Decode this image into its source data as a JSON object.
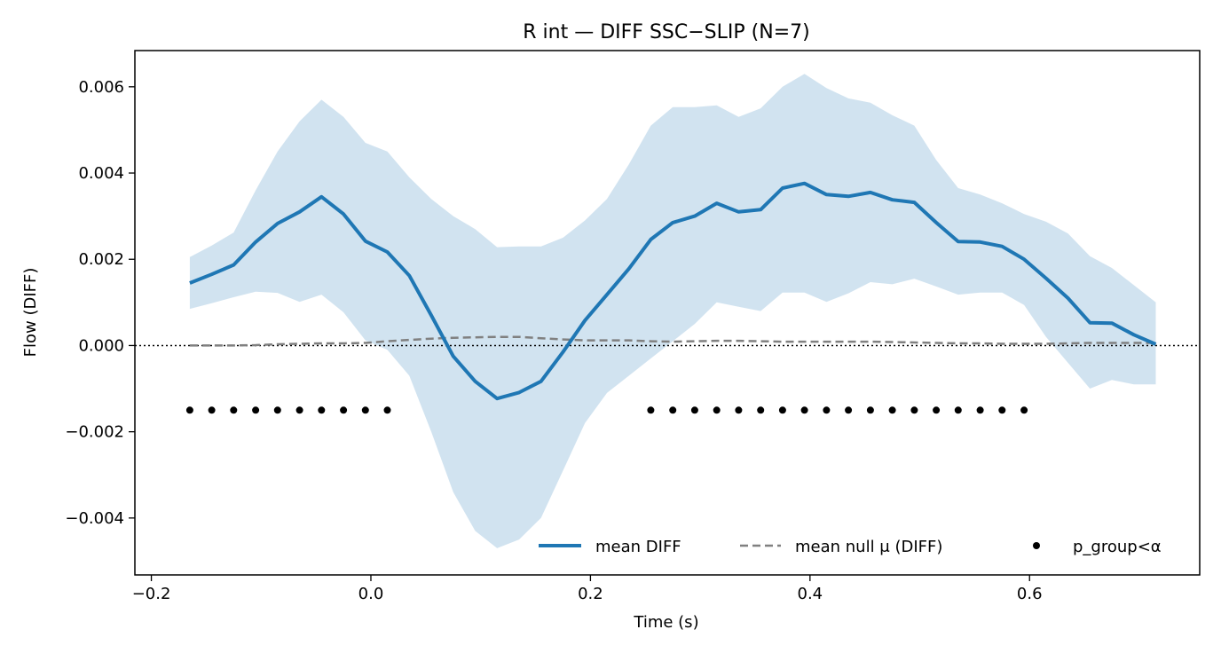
{
  "chart_data": {
    "type": "line",
    "title": "R int — DIFF SSC−SLIP (N=7)",
    "xlabel": "Time (s)",
    "ylabel": "Flow (DIFF)",
    "xlim": [
      -0.215,
      0.755
    ],
    "ylim": [
      -0.00532,
      0.00684
    ],
    "xticks": [
      -0.2,
      0.0,
      0.2,
      0.4,
      0.6
    ],
    "xtick_labels": [
      "−0.2",
      "0.0",
      "0.2",
      "0.4",
      "0.6"
    ],
    "yticks": [
      -0.004,
      -0.002,
      0.0,
      0.002,
      0.004,
      0.006
    ],
    "ytick_labels": [
      "−0.004",
      "−0.002",
      "0.000",
      "0.002",
      "0.004",
      "0.006"
    ],
    "grid": false,
    "legend_position": "lower-right",
    "zero_line": {
      "y": 0.0,
      "style": "dotted",
      "color": "#000000"
    },
    "colors": {
      "mean": "#1f77b4",
      "band": "#c6dcec",
      "null": "#808080",
      "sig": "#000000"
    },
    "x": [
      -0.165,
      -0.145,
      -0.125,
      -0.105,
      -0.085,
      -0.065,
      -0.045,
      -0.025,
      -0.005,
      0.015,
      0.035,
      0.055,
      0.075,
      0.095,
      0.115,
      0.135,
      0.155,
      0.175,
      0.195,
      0.215,
      0.235,
      0.255,
      0.275,
      0.295,
      0.315,
      0.335,
      0.355,
      0.375,
      0.395,
      0.415,
      0.435,
      0.455,
      0.475,
      0.495,
      0.515,
      0.535,
      0.555,
      0.575,
      0.595,
      0.615,
      0.635,
      0.655,
      0.675,
      0.695,
      0.715
    ],
    "series": [
      {
        "name": "mean DIFF",
        "style": "solid",
        "values": [
          0.00145,
          0.00165,
          0.00187,
          0.0024,
          0.00283,
          0.0031,
          0.00345,
          0.00305,
          0.00242,
          0.00217,
          0.00162,
          0.0007,
          -0.00025,
          -0.00083,
          -0.00123,
          -0.00109,
          -0.00083,
          -0.00015,
          0.00058,
          0.00118,
          0.00178,
          0.00246,
          0.00285,
          0.003,
          0.0033,
          0.0031,
          0.00315,
          0.00365,
          0.00376,
          0.0035,
          0.00346,
          0.00355,
          0.00338,
          0.00332,
          0.00285,
          0.00241,
          0.0024,
          0.0023,
          0.002,
          0.00156,
          0.0011,
          0.00053,
          0.00052,
          0.00025,
          3e-05
        ],
        "band_upper": [
          0.00205,
          0.00232,
          0.00262,
          0.0036,
          0.0045,
          0.0052,
          0.0057,
          0.0053,
          0.0047,
          0.0045,
          0.0039,
          0.0034,
          0.003,
          0.0027,
          0.00228,
          0.0023,
          0.0023,
          0.0025,
          0.0029,
          0.0034,
          0.0042,
          0.0051,
          0.00553,
          0.00553,
          0.00557,
          0.0053,
          0.0055,
          0.006,
          0.0063,
          0.00597,
          0.00573,
          0.00563,
          0.00534,
          0.0051,
          0.0043,
          0.00365,
          0.0035,
          0.0033,
          0.00305,
          0.00287,
          0.0026,
          0.00207,
          0.0018,
          0.0014,
          0.001
        ],
        "band_lower": [
          0.00085,
          0.00098,
          0.00112,
          0.00125,
          0.00122,
          0.00101,
          0.00118,
          0.00077,
          0.00012,
          -0.0001,
          -0.0007,
          -0.002,
          -0.0034,
          -0.0043,
          -0.0047,
          -0.0045,
          -0.004,
          -0.0029,
          -0.0018,
          -0.0011,
          -0.0007,
          -0.0003,
          0.0001,
          0.0005,
          0.001,
          0.0009,
          0.0008,
          0.00123,
          0.00123,
          0.00101,
          0.00121,
          0.00147,
          0.00142,
          0.00155,
          0.00137,
          0.00118,
          0.00123,
          0.00123,
          0.00094,
          0.0002,
          -0.0004,
          -0.001,
          -0.0008,
          -0.0009,
          -0.0009
        ]
      },
      {
        "name": "mean null μ (DIFF)",
        "style": "dashed",
        "values": [
          0.0,
          0.0,
          0.0,
          1e-05,
          3e-05,
          4e-05,
          5e-05,
          5e-05,
          6e-05,
          0.0001,
          0.00013,
          0.00016,
          0.00018,
          0.00019,
          0.0002,
          0.0002,
          0.00017,
          0.00014,
          0.00012,
          0.00012,
          0.00012,
          0.0001,
          9e-05,
          0.0001,
          0.00011,
          0.00011,
          0.0001,
          9e-05,
          9e-05,
          9e-05,
          9e-05,
          9e-05,
          8e-05,
          7e-05,
          6e-05,
          5e-05,
          5e-05,
          4e-05,
          4e-05,
          4e-05,
          5e-05,
          6e-05,
          6e-05,
          6e-05,
          6e-05
        ]
      }
    ],
    "significance": {
      "name": "p_group<α",
      "y": -0.0015,
      "x": [
        -0.165,
        -0.145,
        -0.125,
        -0.105,
        -0.085,
        -0.065,
        -0.045,
        -0.025,
        -0.005,
        0.015,
        0.255,
        0.275,
        0.295,
        0.315,
        0.335,
        0.355,
        0.375,
        0.395,
        0.415,
        0.435,
        0.455,
        0.475,
        0.495,
        0.515,
        0.535,
        0.555,
        0.575,
        0.595
      ]
    },
    "legend": [
      "mean DIFF",
      "mean null μ (DIFF)",
      "p_group<α"
    ]
  }
}
